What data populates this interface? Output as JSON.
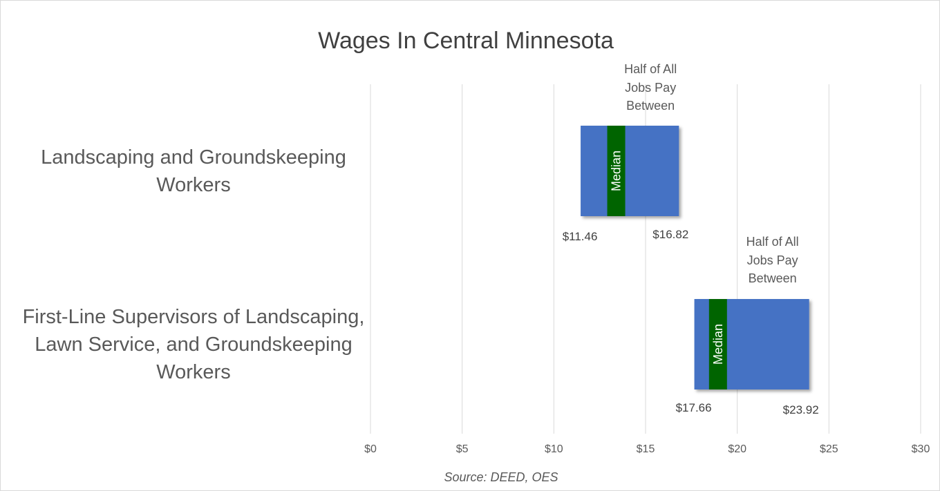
{
  "chart_data": {
    "type": "bar",
    "orientation": "horizontal",
    "title": "Wages In Central Minnesota",
    "source": "Source: DEED, OES",
    "xlim": [
      0,
      30
    ],
    "x_ticks": [
      0,
      5,
      10,
      15,
      20,
      25,
      30
    ],
    "x_tick_labels": [
      "$0",
      "$5",
      "$10",
      "$15",
      "$20",
      "$25",
      "$30"
    ],
    "grid": "vertical",
    "range_note": [
      "Half of All",
      "Jobs Pay",
      "Between"
    ],
    "median_label": "Median",
    "categories": [
      {
        "label_lines": [
          "Landscaping and Groundskeeping",
          "Workers"
        ],
        "low": 11.46,
        "high": 16.82,
        "low_label": "$11.46",
        "high_label": "$16.82",
        "median": 13.4
      },
      {
        "label_lines": [
          "First-Line Supervisors of Landscaping,",
          "Lawn Service, and Groundskeeping",
          "Workers"
        ],
        "low": 17.66,
        "high": 23.92,
        "low_label": "$17.66",
        "high_label": "$23.92",
        "median": 18.95
      }
    ],
    "colors": {
      "range_bar": "#4472c4",
      "median_band": "#006400",
      "grid": "#d9d9d9"
    }
  }
}
